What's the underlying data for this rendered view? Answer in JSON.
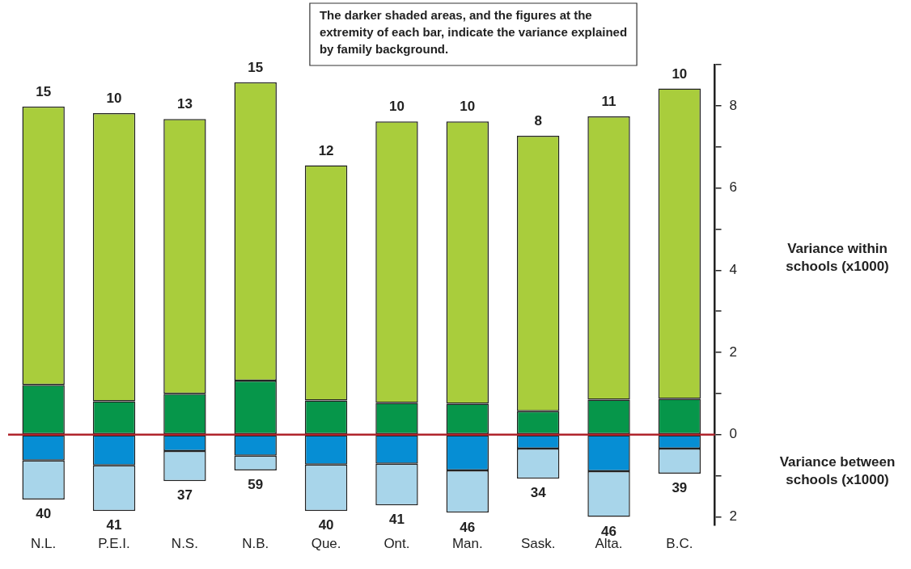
{
  "chart_data": {
    "type": "bar",
    "stacked": true,
    "grid": false,
    "legend": false,
    "categories": [
      "N.L.",
      "P.E.I.",
      "N.S.",
      "N.B.",
      "Que.",
      "Ont.",
      "Man.",
      "Sask.",
      "Alta.",
      "B.C."
    ],
    "series": [
      {
        "color": "#06964a",
        "values": [
          1.21,
          0.81,
          0.99,
          1.31,
          0.83,
          0.77,
          0.75,
          0.57,
          0.85,
          0.87
        ]
      },
      {
        "color": "#a9cd3c",
        "values": [
          6.77,
          7.01,
          6.69,
          7.26,
          5.72,
          6.85,
          6.87,
          6.7,
          6.89,
          7.55
        ]
      },
      {
        "color": "#068ed4",
        "values": [
          -0.63,
          -0.75,
          -0.4,
          -0.51,
          -0.73,
          -0.71,
          -0.87,
          -0.34,
          -0.89,
          -0.34
        ]
      },
      {
        "color": "#a8d5ea",
        "values": [
          -0.95,
          -1.11,
          -0.73,
          -0.36,
          -1.13,
          -1.01,
          -1.03,
          -0.73,
          -1.11,
          -0.61
        ]
      }
    ],
    "ylim": [
      -2.2,
      9
    ],
    "yticks": [
      {
        "value": -2,
        "label": "2"
      },
      {
        "value": -1,
        "label": null
      },
      0,
      {
        "value": 1,
        "label": null
      },
      2,
      {
        "value": 3,
        "label": null
      },
      4,
      {
        "value": 5,
        "label": null
      },
      6,
      {
        "value": 7,
        "label": null
      },
      8,
      {
        "value": 9,
        "label": null
      }
    ],
    "ylabel": "Variance within schools (x1000)",
    "ref_lines": [
      {
        "axis": "y",
        "value": 0,
        "color": "#b0242c"
      }
    ],
    "annotations": [
      "The darker shaded areas, and the figures at the extremity of each bar, indicate the variance explained by family background.",
      "Variance between schools (x1000)",
      {
        "text": "15",
        "x": "N.L.",
        "y": 7.98
      },
      {
        "text": "10",
        "x": "P.E.I.",
        "y": 7.82
      },
      {
        "text": "13",
        "x": "N.S.",
        "y": 7.68
      },
      {
        "text": "15",
        "x": "N.B.",
        "y": 8.57
      },
      {
        "text": "12",
        "x": "Que.",
        "y": 6.55
      },
      {
        "text": "10",
        "x": "Ont.",
        "y": 7.62
      },
      {
        "text": "10",
        "x": "Man.",
        "y": 7.62
      },
      {
        "text": "8",
        "x": "Sask.",
        "y": 7.27
      },
      {
        "text": "11",
        "x": "Alta.",
        "y": 7.74
      },
      {
        "text": "10",
        "x": "B.C.",
        "y": 8.42
      },
      {
        "text": "40",
        "x": "N.L.",
        "y": -1.58
      },
      {
        "text": "41",
        "x": "P.E.I.",
        "y": -1.86
      },
      {
        "text": "37",
        "x": "N.S.",
        "y": -1.13
      },
      {
        "text": "59",
        "x": "N.B.",
        "y": -0.87
      },
      {
        "text": "40",
        "x": "Que.",
        "y": -1.86
      },
      {
        "text": "41",
        "x": "Ont.",
        "y": -1.72
      },
      {
        "text": "46",
        "x": "Man.",
        "y": -1.9
      },
      {
        "text": "34",
        "x": "Sask.",
        "y": -1.07
      },
      {
        "text": "46",
        "x": "Alta.",
        "y": -2.0
      },
      {
        "text": "39",
        "x": "B.C.",
        "y": -0.95
      }
    ]
  }
}
